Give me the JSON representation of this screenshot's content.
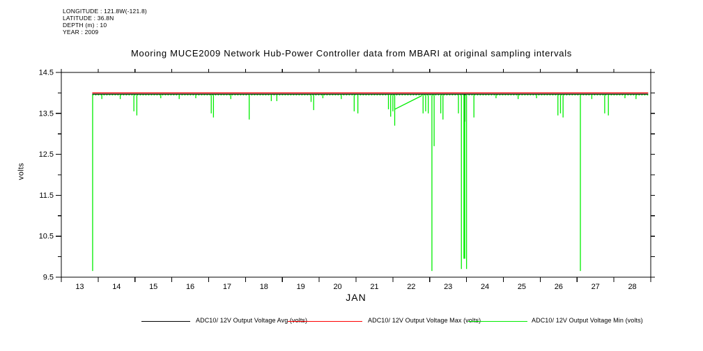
{
  "header": {
    "longitude": "LONGITUDE : 121.8W(-121.8)",
    "latitude": "LATITUDE : 36.8N",
    "depth": "DEPTH (m) : 10",
    "year": "YEAR : 2009"
  },
  "title": "Mooring MUCE2009 Network Hub-Power Controller data from MBARI at original sampling intervals",
  "chart_data": {
    "type": "line",
    "title": "Mooring MUCE2009 Network Hub-Power Controller data from MBARI at original sampling intervals",
    "xlabel": "JAN",
    "ylabel": "volts",
    "xlim": [
      12.5,
      28.5
    ],
    "ylim": [
      9.5,
      14.5
    ],
    "x_ticks": [
      13,
      14,
      15,
      16,
      17,
      18,
      19,
      20,
      21,
      22,
      23,
      24,
      25,
      26,
      27,
      28
    ],
    "y_ticks": [
      9.5,
      10.5,
      11.5,
      12.5,
      13.5,
      14.5
    ],
    "y_minor_step": 0.5,
    "grid": false,
    "legend_position": "bottom",
    "series": [
      {
        "id": "avg",
        "name": "ADC10/ 12V Output Voltage Avg (volts)",
        "color": "#000000",
        "dashed": false,
        "baseline": {
          "start": 13.34,
          "end": 28.43,
          "value": 13.97
        },
        "spikes": [
          [
            23.45,
            13.3,
            2
          ]
        ],
        "segments": []
      },
      {
        "id": "max",
        "name": "ADC10/ 12V Output Voltage Max (volts)",
        "color": "#ff0000",
        "dashed": false,
        "baseline": {
          "start": 13.34,
          "end": 28.43,
          "value": 14.0
        },
        "spikes": [],
        "segments": []
      },
      {
        "id": "min",
        "name": "ADC10/ 12V Output Voltage Min (volts)",
        "color": "#00ee00",
        "dashed": true,
        "baseline": {
          "start": 13.34,
          "end": 28.43,
          "value": 13.95
        },
        "spikes": [
          [
            13.35,
            9.65
          ],
          [
            13.6,
            13.85
          ],
          [
            14.1,
            13.85
          ],
          [
            14.47,
            13.55
          ],
          [
            14.55,
            13.45
          ],
          [
            15.2,
            13.87
          ],
          [
            15.7,
            13.85
          ],
          [
            16.15,
            13.87
          ],
          [
            16.57,
            13.5
          ],
          [
            16.63,
            13.4
          ],
          [
            17.1,
            13.85
          ],
          [
            17.6,
            13.35
          ],
          [
            18.2,
            13.8
          ],
          [
            18.35,
            13.8
          ],
          [
            19.28,
            13.78
          ],
          [
            19.35,
            13.58
          ],
          [
            19.6,
            13.87
          ],
          [
            20.1,
            13.85
          ],
          [
            20.45,
            13.55
          ],
          [
            20.55,
            13.5
          ],
          [
            21.38,
            13.6
          ],
          [
            21.44,
            13.42
          ],
          [
            21.5,
            13.55
          ],
          [
            21.55,
            13.2
          ],
          [
            22.32,
            13.5
          ],
          [
            22.39,
            13.55
          ],
          [
            22.46,
            13.5
          ],
          [
            22.56,
            9.65
          ],
          [
            22.62,
            12.7
          ],
          [
            22.8,
            13.5
          ],
          [
            22.86,
            13.35
          ],
          [
            23.28,
            13.5
          ],
          [
            23.36,
            9.7
          ],
          [
            23.44,
            9.95,
            2.5
          ],
          [
            23.5,
            9.7
          ],
          [
            23.7,
            13.4
          ],
          [
            24.3,
            13.87
          ],
          [
            24.9,
            13.85
          ],
          [
            25.4,
            13.87
          ],
          [
            25.98,
            13.45
          ],
          [
            26.05,
            13.5
          ],
          [
            26.12,
            13.4
          ],
          [
            26.59,
            9.65
          ],
          [
            26.9,
            13.85
          ],
          [
            27.25,
            13.5
          ],
          [
            27.35,
            13.45
          ],
          [
            27.8,
            13.87
          ],
          [
            28.1,
            13.85
          ]
        ],
        "segments": [
          [
            [
              21.55,
              13.6
            ],
            [
              22.28,
              13.93
            ]
          ]
        ]
      }
    ]
  },
  "legend": {
    "items": [
      {
        "label": "ADC10/ 12V Output Voltage Avg (volts)",
        "color": "#000000"
      },
      {
        "label": "ADC10/ 12V Output Voltage Max (volts)",
        "color": "#ff0000"
      },
      {
        "label": "ADC10/ 12V Output Voltage Min (volts)",
        "color": "#00ee00"
      }
    ]
  }
}
